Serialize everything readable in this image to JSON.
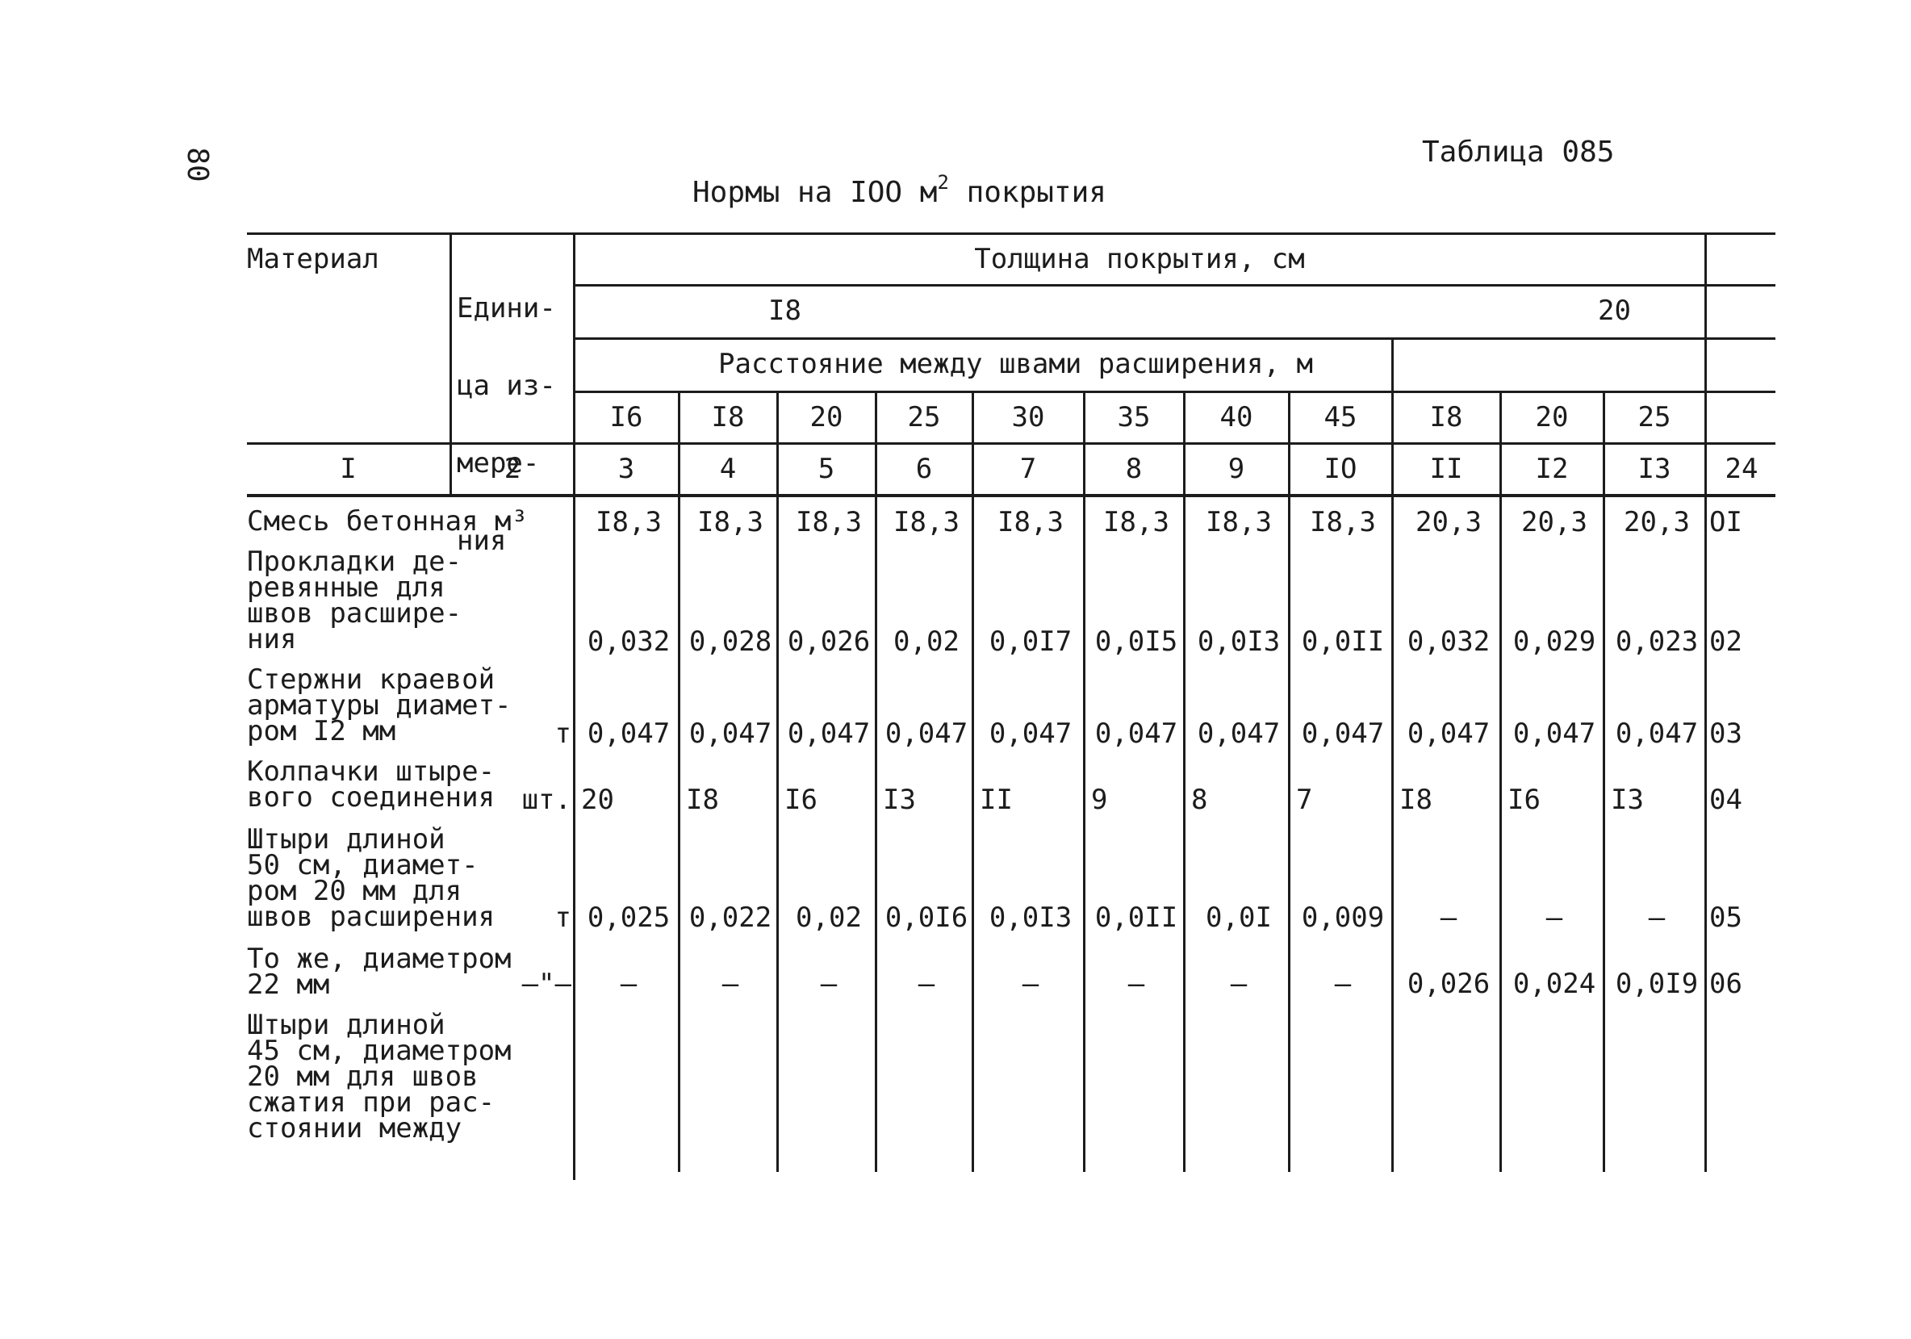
{
  "page_number": "80",
  "table_label": "Таблица 085",
  "title": {
    "text": "Нормы на IOO м",
    "sup": "2",
    "suffix": " покрытия"
  },
  "header": {
    "material": "Материал",
    "unit_lines": [
      "Едини-",
      "ца из-",
      "мере-",
      "ния"
    ],
    "thickness": "Толщина покрытия, см",
    "thick_18": "I8",
    "thick_20": "20",
    "distance": "Расстояние между швами расширения, м",
    "distances": [
      "I6",
      "I8",
      "20",
      "25",
      "30",
      "35",
      "40",
      "45",
      "I8",
      "20",
      "25"
    ]
  },
  "column_numbers": [
    "I",
    "2",
    "3",
    "4",
    "5",
    "6",
    "7",
    "8",
    "9",
    "IO",
    "II",
    "I2",
    "I3",
    "24"
  ],
  "rows": [
    {
      "material_lines": [
        "Смесь бетонная м³"
      ],
      "unit": "",
      "values": [
        "I8,3",
        "I8,3",
        "I8,3",
        "I8,3",
        "I8,3",
        "I8,3",
        "I8,3",
        "I8,3",
        "20,3",
        "20,3",
        "20,3"
      ],
      "code": "OI"
    },
    {
      "material_lines": [
        "Прокладки де-",
        "ревянные для",
        "швов расшире-",
        "ния"
      ],
      "unit": "",
      "values": [
        "0,032",
        "0,028",
        "0,026",
        "0,02",
        "0,0I7",
        "0,0I5",
        "0,0I3",
        "0,0II",
        "0,032",
        "0,029",
        "0,023"
      ],
      "code": "02"
    },
    {
      "material_lines": [
        "Стержни краевой",
        "арматуры диамет-",
        "ром I2 мм"
      ],
      "unit": "т",
      "values": [
        "0,047",
        "0,047",
        "0,047",
        "0,047",
        "0,047",
        "0,047",
        "0,047",
        "0,047",
        "0,047",
        "0,047",
        "0,047"
      ],
      "code": "03"
    },
    {
      "material_lines": [
        "Колпачки штыре-",
        "вого соединения"
      ],
      "unit": "шт.",
      "values": [
        "20",
        "I8",
        "I6",
        "I3",
        "II",
        "9",
        "8",
        "7",
        "I8",
        "I6",
        "I3"
      ],
      "code": "04"
    },
    {
      "material_lines": [
        "Штыри длиной",
        "50 см, диамет-",
        "ром 20 мм для",
        "швов расширения"
      ],
      "unit": "т",
      "values": [
        "0,025",
        "0,022",
        "0,02",
        "0,0I6",
        "0,0I3",
        "0,0II",
        "0,0I",
        "0,009",
        "–",
        "–",
        "–"
      ],
      "code": "05"
    },
    {
      "material_lines": [
        "То же, диаметром",
        "22 мм"
      ],
      "unit": "–\"–",
      "values": [
        "–",
        "–",
        "–",
        "–",
        "–",
        "–",
        "–",
        "–",
        "0,026",
        "0,024",
        "0,0I9"
      ],
      "code": "06"
    },
    {
      "material_lines": [
        "Штыри длиной",
        "45 см, диаметром",
        "20 мм для швов",
        "сжатия при рас-",
        "стоянии между"
      ],
      "unit": "",
      "values": [
        "",
        "",
        "",
        "",
        "",
        "",
        "",
        "",
        "",
        "",
        ""
      ],
      "code": ""
    }
  ]
}
